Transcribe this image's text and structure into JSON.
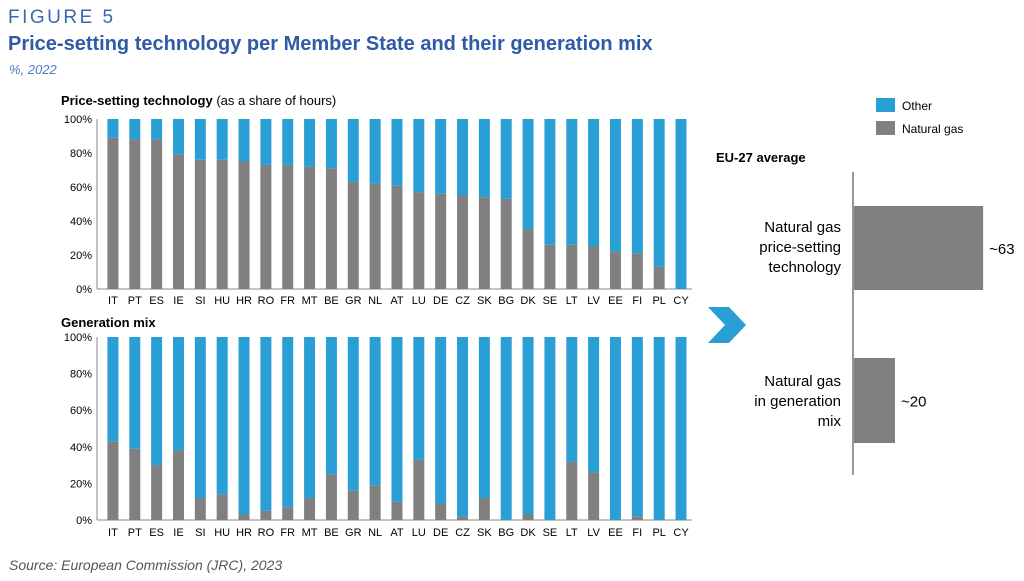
{
  "figure": {
    "label": "FIGURE 5",
    "title": "Price-setting technology per Member State and their generation mix",
    "units": "%, 2022",
    "source": "Source: European Commission (JRC), 2023"
  },
  "colors": {
    "other": "#2a9fd6",
    "natural_gas": "#808080",
    "arrow": "#2a9fd6",
    "axis": "#888888"
  },
  "icons": {
    "arrow": "chevron-right-icon"
  },
  "chart_data": [
    {
      "type": "bar",
      "stacked": true,
      "title": "Price-setting technology",
      "subtitle": "(as a share of hours)",
      "categories": [
        "IT",
        "PT",
        "ES",
        "IE",
        "SI",
        "HU",
        "HR",
        "RO",
        "FR",
        "MT",
        "BE",
        "GR",
        "NL",
        "AT",
        "LU",
        "DE",
        "CZ",
        "SK",
        "BG",
        "DK",
        "SE",
        "LT",
        "LV",
        "EE",
        "FI",
        "PL",
        "CY"
      ],
      "series": [
        {
          "name": "Natural gas",
          "values": [
            89,
            88,
            88,
            79,
            76,
            76,
            75,
            73,
            73,
            72,
            71,
            63,
            62,
            61,
            57,
            56,
            55,
            54,
            53,
            35,
            26,
            26,
            25,
            22,
            21,
            13,
            0
          ]
        },
        {
          "name": "Other",
          "values": [
            11,
            12,
            12,
            21,
            24,
            24,
            25,
            27,
            27,
            28,
            29,
            37,
            38,
            39,
            43,
            44,
            45,
            46,
            47,
            65,
            74,
            74,
            75,
            78,
            79,
            87,
            100
          ]
        }
      ],
      "yticks": [
        "0%",
        "20%",
        "40%",
        "60%",
        "80%",
        "100%"
      ],
      "ylim": [
        0,
        100
      ]
    },
    {
      "type": "bar",
      "stacked": true,
      "title": "Generation mix",
      "categories": [
        "IT",
        "PT",
        "ES",
        "IE",
        "SI",
        "HU",
        "HR",
        "RO",
        "FR",
        "MT",
        "BE",
        "GR",
        "NL",
        "AT",
        "LU",
        "DE",
        "CZ",
        "SK",
        "BG",
        "DK",
        "SE",
        "LT",
        "LV",
        "EE",
        "FI",
        "PL",
        "CY"
      ],
      "series": [
        {
          "name": "Natural gas",
          "values": [
            43,
            39,
            30,
            38,
            12,
            14,
            3,
            5,
            7,
            12,
            25,
            16,
            19,
            10,
            33,
            9,
            2,
            12,
            0,
            3,
            0,
            32,
            26,
            0,
            2,
            0,
            0
          ]
        },
        {
          "name": "Other",
          "values": [
            57,
            61,
            70,
            62,
            88,
            86,
            97,
            95,
            93,
            88,
            75,
            84,
            81,
            90,
            67,
            91,
            98,
            88,
            100,
            97,
            100,
            68,
            74,
            100,
            98,
            100,
            100
          ]
        }
      ],
      "yticks": [
        "0%",
        "20%",
        "40%",
        "60%",
        "80%",
        "100%"
      ],
      "ylim": [
        0,
        100
      ]
    },
    {
      "type": "bar",
      "orientation": "horizontal",
      "title": "EU-27 average",
      "legend": [
        "Other",
        "Natural gas"
      ],
      "categories": [
        "Natural gas price-setting technology",
        "Natural gas in generation mix"
      ],
      "category_lines": [
        [
          "Natural gas",
          "price-setting",
          "technology"
        ],
        [
          "Natural gas",
          "in generation",
          "mix"
        ]
      ],
      "values": [
        63,
        20
      ],
      "value_labels": [
        "~63",
        "~20"
      ]
    }
  ]
}
